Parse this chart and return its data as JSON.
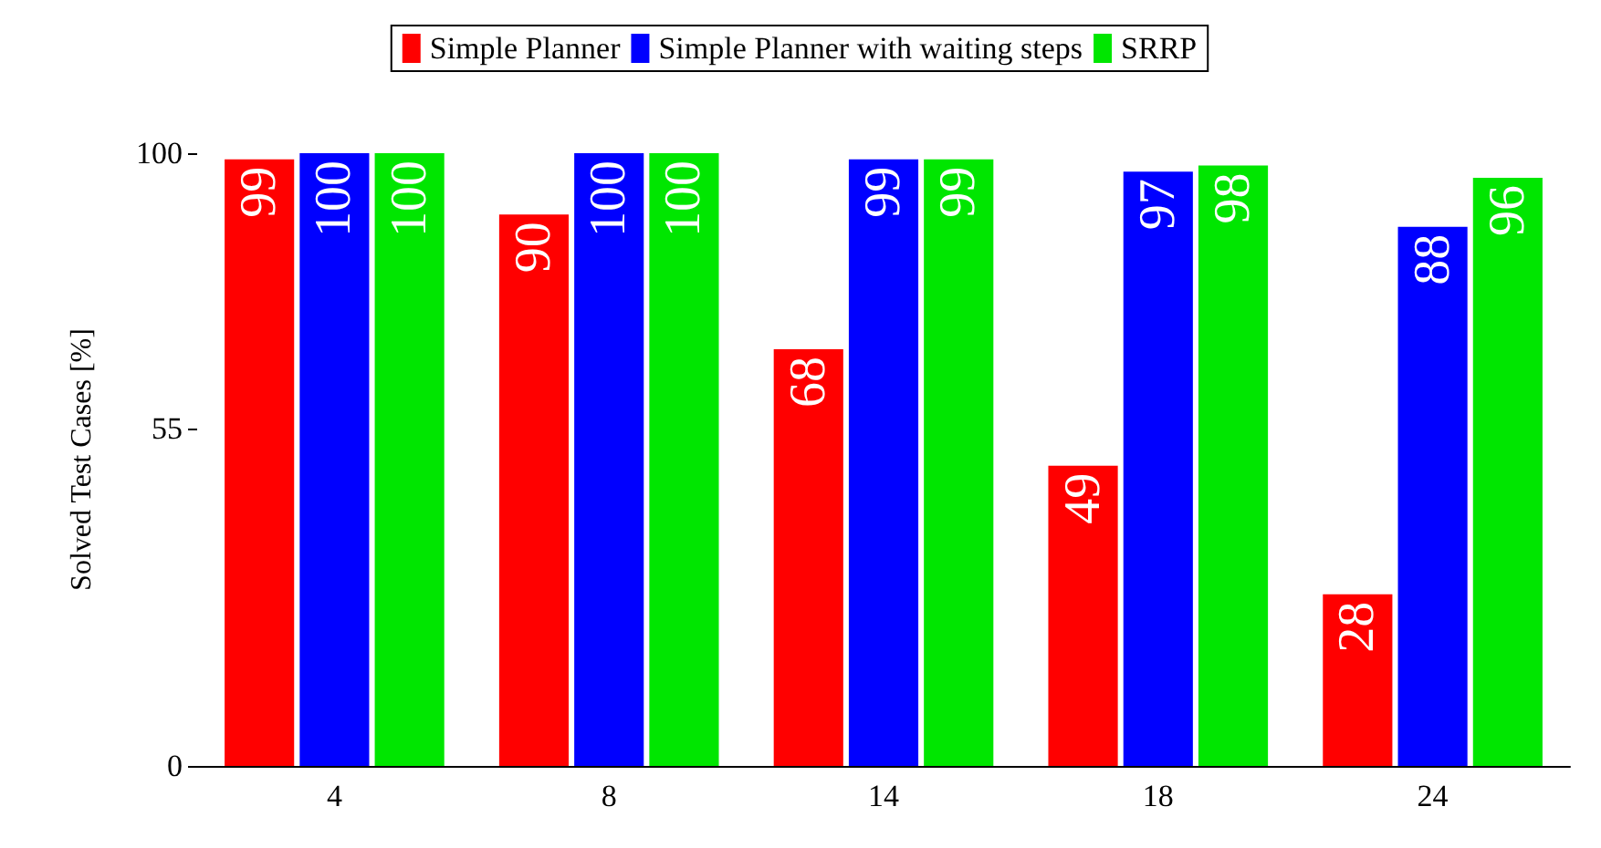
{
  "chart_data": {
    "type": "bar",
    "ylabel": "Solved Test Cases [%]",
    "categories": [
      "4",
      "8",
      "14",
      "18",
      "24"
    ],
    "series": [
      {
        "name": "Simple Planner",
        "color": "#ff0000",
        "values": [
          99,
          90,
          68,
          49,
          28
        ]
      },
      {
        "name": "Simple Planner with waiting steps",
        "color": "#0000ff",
        "values": [
          100,
          100,
          99,
          97,
          88
        ]
      },
      {
        "name": "SRRP",
        "color": "#00e600",
        "values": [
          100,
          100,
          99,
          98,
          96
        ]
      }
    ],
    "ylim": [
      0,
      100
    ],
    "yticks": [
      0,
      55,
      100
    ],
    "grid": false,
    "legend": "top",
    "data_labels": true
  }
}
